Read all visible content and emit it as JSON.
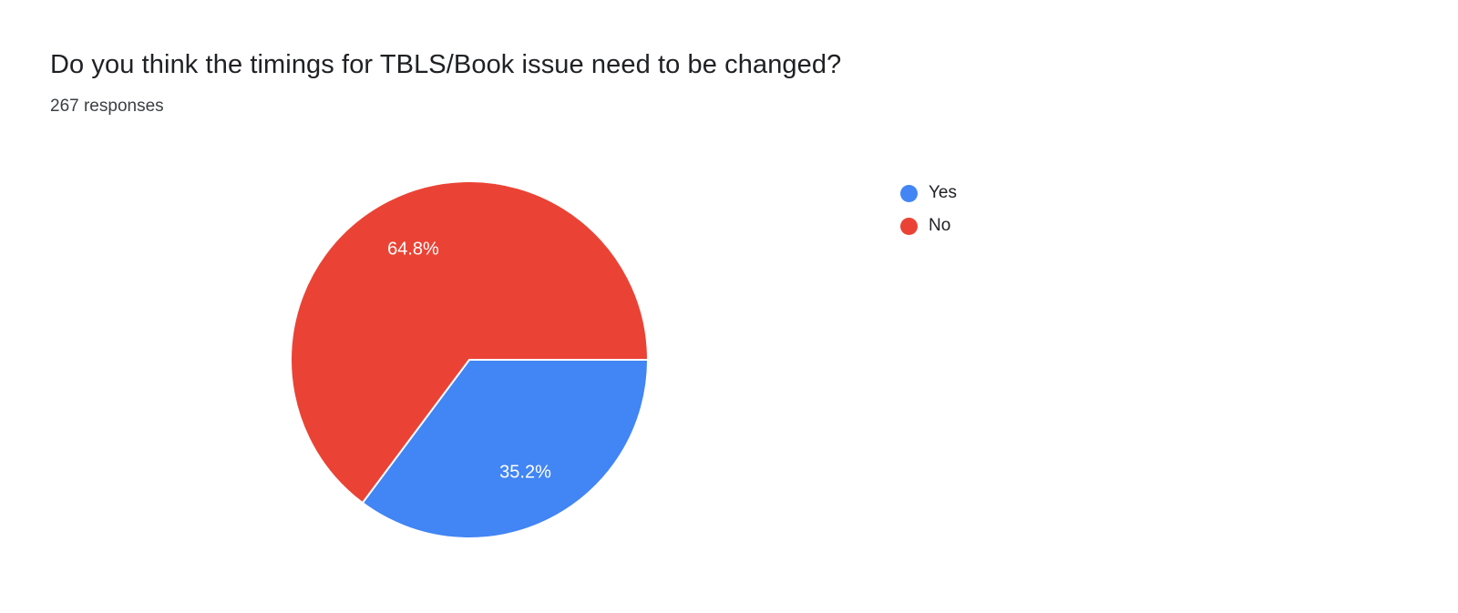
{
  "header": {
    "title": "Do you think the timings for TBLS/Book issue need to be changed?",
    "responses": "267 responses"
  },
  "chart_data": {
    "type": "pie",
    "title": "Do you think the timings for TBLS/Book issue need to be changed?",
    "subtitle": "267 responses",
    "responses_count": 267,
    "categories": [
      "Yes",
      "No"
    ],
    "values": [
      35.2,
      64.8
    ],
    "labels": [
      "35.2%",
      "64.8%"
    ],
    "colors": [
      "#4285f4",
      "#ea4335"
    ],
    "label_color": "#ffffff",
    "legend_position": "right",
    "start_angle_deg": 0,
    "direction": "clockwise"
  },
  "legend": {
    "items": [
      {
        "label": "Yes",
        "color": "#4285f4"
      },
      {
        "label": "No",
        "color": "#ea4335"
      }
    ]
  }
}
